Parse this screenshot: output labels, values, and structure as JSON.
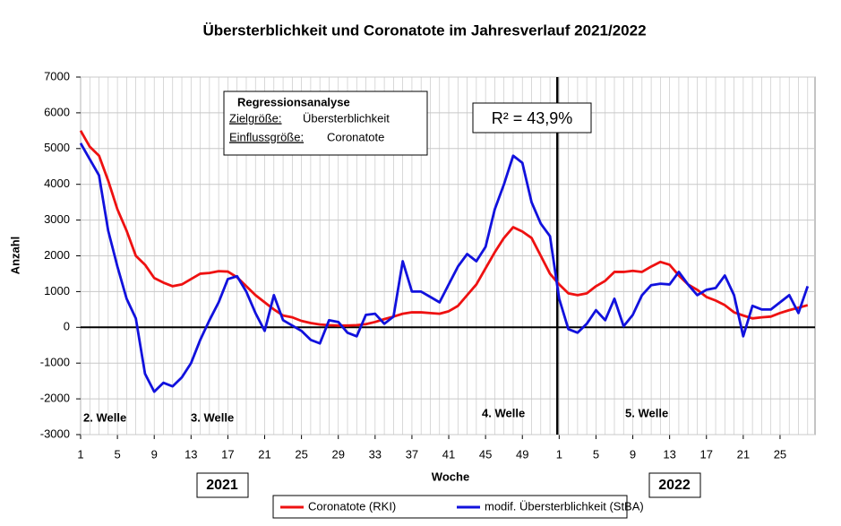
{
  "chart_data": {
    "type": "line",
    "title": "Übersterblichkeit und Coronatote im Jahresverlauf 2021/2022",
    "y_label": "Anzahl",
    "x_label": "Woche",
    "categories": [
      "1",
      null,
      null,
      null,
      "5",
      null,
      null,
      null,
      "9",
      null,
      null,
      null,
      "13",
      null,
      null,
      null,
      "17",
      null,
      null,
      null,
      "21",
      null,
      null,
      null,
      "25",
      null,
      null,
      null,
      "29",
      null,
      null,
      null,
      "33",
      null,
      null,
      null,
      "37",
      null,
      null,
      null,
      "41",
      null,
      null,
      null,
      "45",
      null,
      null,
      null,
      "49",
      null,
      null,
      null,
      "1",
      null,
      null,
      null,
      "5",
      null,
      null,
      null,
      "9",
      null,
      null,
      null,
      "13",
      null,
      null,
      null,
      "17",
      null,
      null,
      null,
      "21",
      null,
      null,
      null,
      "25",
      null,
      null,
      null
    ],
    "year_labels": [
      "2021",
      "2022"
    ],
    "series": [
      {
        "name": "Coronatote (RKI)",
        "color": "#ee1111",
        "values": [
          5500,
          5050,
          4800,
          4100,
          3300,
          2700,
          2000,
          1750,
          1380,
          1250,
          1150,
          1200,
          1350,
          1500,
          1520,
          1570,
          1560,
          1400,
          1150,
          900,
          700,
          500,
          330,
          280,
          180,
          120,
          80,
          60,
          50,
          50,
          60,
          90,
          150,
          230,
          300,
          380,
          420,
          420,
          400,
          380,
          450,
          600,
          900,
          1200,
          1650,
          2100,
          2500,
          2800,
          2680,
          2500,
          2000,
          1500,
          1200,
          950,
          900,
          950,
          1150,
          1300,
          1550,
          1550,
          1580,
          1550,
          1700,
          1830,
          1750,
          1450,
          1200,
          1050,
          850,
          750,
          620,
          420,
          330,
          250,
          280,
          300,
          400,
          480,
          550,
          620
        ]
      },
      {
        "name": "modif. Übersterblichkeit (StBA)",
        "color": "#1111dd",
        "values": [
          5150,
          4700,
          4250,
          2700,
          1700,
          800,
          250,
          -1300,
          -1800,
          -1550,
          -1650,
          -1400,
          -1000,
          -350,
          200,
          700,
          1350,
          1430,
          1000,
          400,
          -100,
          900,
          200,
          50,
          -100,
          -350,
          -450,
          200,
          150,
          -150,
          -250,
          350,
          380,
          100,
          300,
          1850,
          1000,
          1000,
          850,
          700,
          1200,
          1700,
          2050,
          1850,
          2250,
          3300,
          4000,
          4800,
          4600,
          3500,
          2900,
          2550,
          800,
          -50,
          -150,
          100,
          480,
          200,
          800,
          30,
          350,
          900,
          1180,
          1220,
          1200,
          1550,
          1200,
          900,
          1050,
          1100,
          1450,
          900,
          -250,
          600,
          500,
          500,
          700,
          900,
          400,
          1150
        ]
      }
    ],
    "ylim": [
      -3000,
      7000
    ],
    "yticks": [
      -3000,
      -2000,
      -1000,
      0,
      1000,
      2000,
      3000,
      4000,
      5000,
      6000,
      7000
    ],
    "grid": true,
    "legend": "bottom",
    "annotations": [
      "2. Welle",
      "3. Welle",
      "4. Welle",
      "5. Welle"
    ],
    "regression_box": {
      "title": "Regressionsanalyse",
      "target_label": "Zielgröße:",
      "target": "Übersterblichkeit",
      "influence_label": "Einflussgröße:",
      "influence": "Coronatote"
    },
    "r2_label": "R² = 43,9%"
  }
}
